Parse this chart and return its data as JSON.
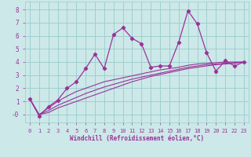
{
  "xlabel": "Windchill (Refroidissement éolien,°C)",
  "bg_color": "#cce8e8",
  "grid_color": "#99cccc",
  "line_color": "#993399",
  "x_data": [
    0,
    1,
    2,
    3,
    4,
    5,
    6,
    7,
    8,
    9,
    10,
    11,
    12,
    13,
    14,
    15,
    16,
    17,
    18,
    19,
    20,
    21,
    22,
    23
  ],
  "y_main": [
    1.2,
    -0.1,
    0.6,
    1.1,
    2.0,
    2.5,
    3.5,
    4.6,
    3.5,
    6.1,
    6.6,
    5.8,
    5.4,
    3.6,
    3.7,
    3.7,
    5.5,
    7.9,
    6.9,
    4.7,
    3.3,
    4.1,
    3.7,
    4.0
  ],
  "y_env1": [
    1.2,
    0.0,
    0.15,
    0.5,
    0.75,
    1.0,
    1.25,
    1.5,
    1.75,
    2.0,
    2.25,
    2.5,
    2.7,
    2.9,
    3.05,
    3.2,
    3.35,
    3.5,
    3.6,
    3.7,
    3.8,
    3.85,
    3.9,
    4.0
  ],
  "y_env2": [
    1.2,
    0.0,
    0.3,
    0.7,
    1.0,
    1.3,
    1.6,
    1.85,
    2.1,
    2.3,
    2.5,
    2.7,
    2.85,
    3.0,
    3.15,
    3.3,
    3.45,
    3.6,
    3.7,
    3.8,
    3.85,
    3.9,
    3.95,
    4.0
  ],
  "y_env3": [
    1.2,
    0.0,
    0.5,
    1.0,
    1.4,
    1.75,
    2.0,
    2.25,
    2.5,
    2.65,
    2.8,
    2.95,
    3.1,
    3.25,
    3.4,
    3.5,
    3.6,
    3.75,
    3.85,
    3.9,
    3.95,
    4.0,
    4.0,
    4.0
  ],
  "ylim": [
    -0.6,
    8.6
  ],
  "xlim": [
    -0.5,
    23.5
  ],
  "yticks": [
    0,
    1,
    2,
    3,
    4,
    5,
    6,
    7,
    8
  ],
  "ytick_labels": [
    "-0",
    "1",
    "2",
    "3",
    "4",
    "5",
    "6",
    "7",
    "8"
  ],
  "xticks": [
    0,
    1,
    2,
    3,
    4,
    5,
    6,
    7,
    8,
    9,
    10,
    11,
    12,
    13,
    14,
    15,
    16,
    17,
    18,
    19,
    20,
    21,
    22,
    23
  ]
}
